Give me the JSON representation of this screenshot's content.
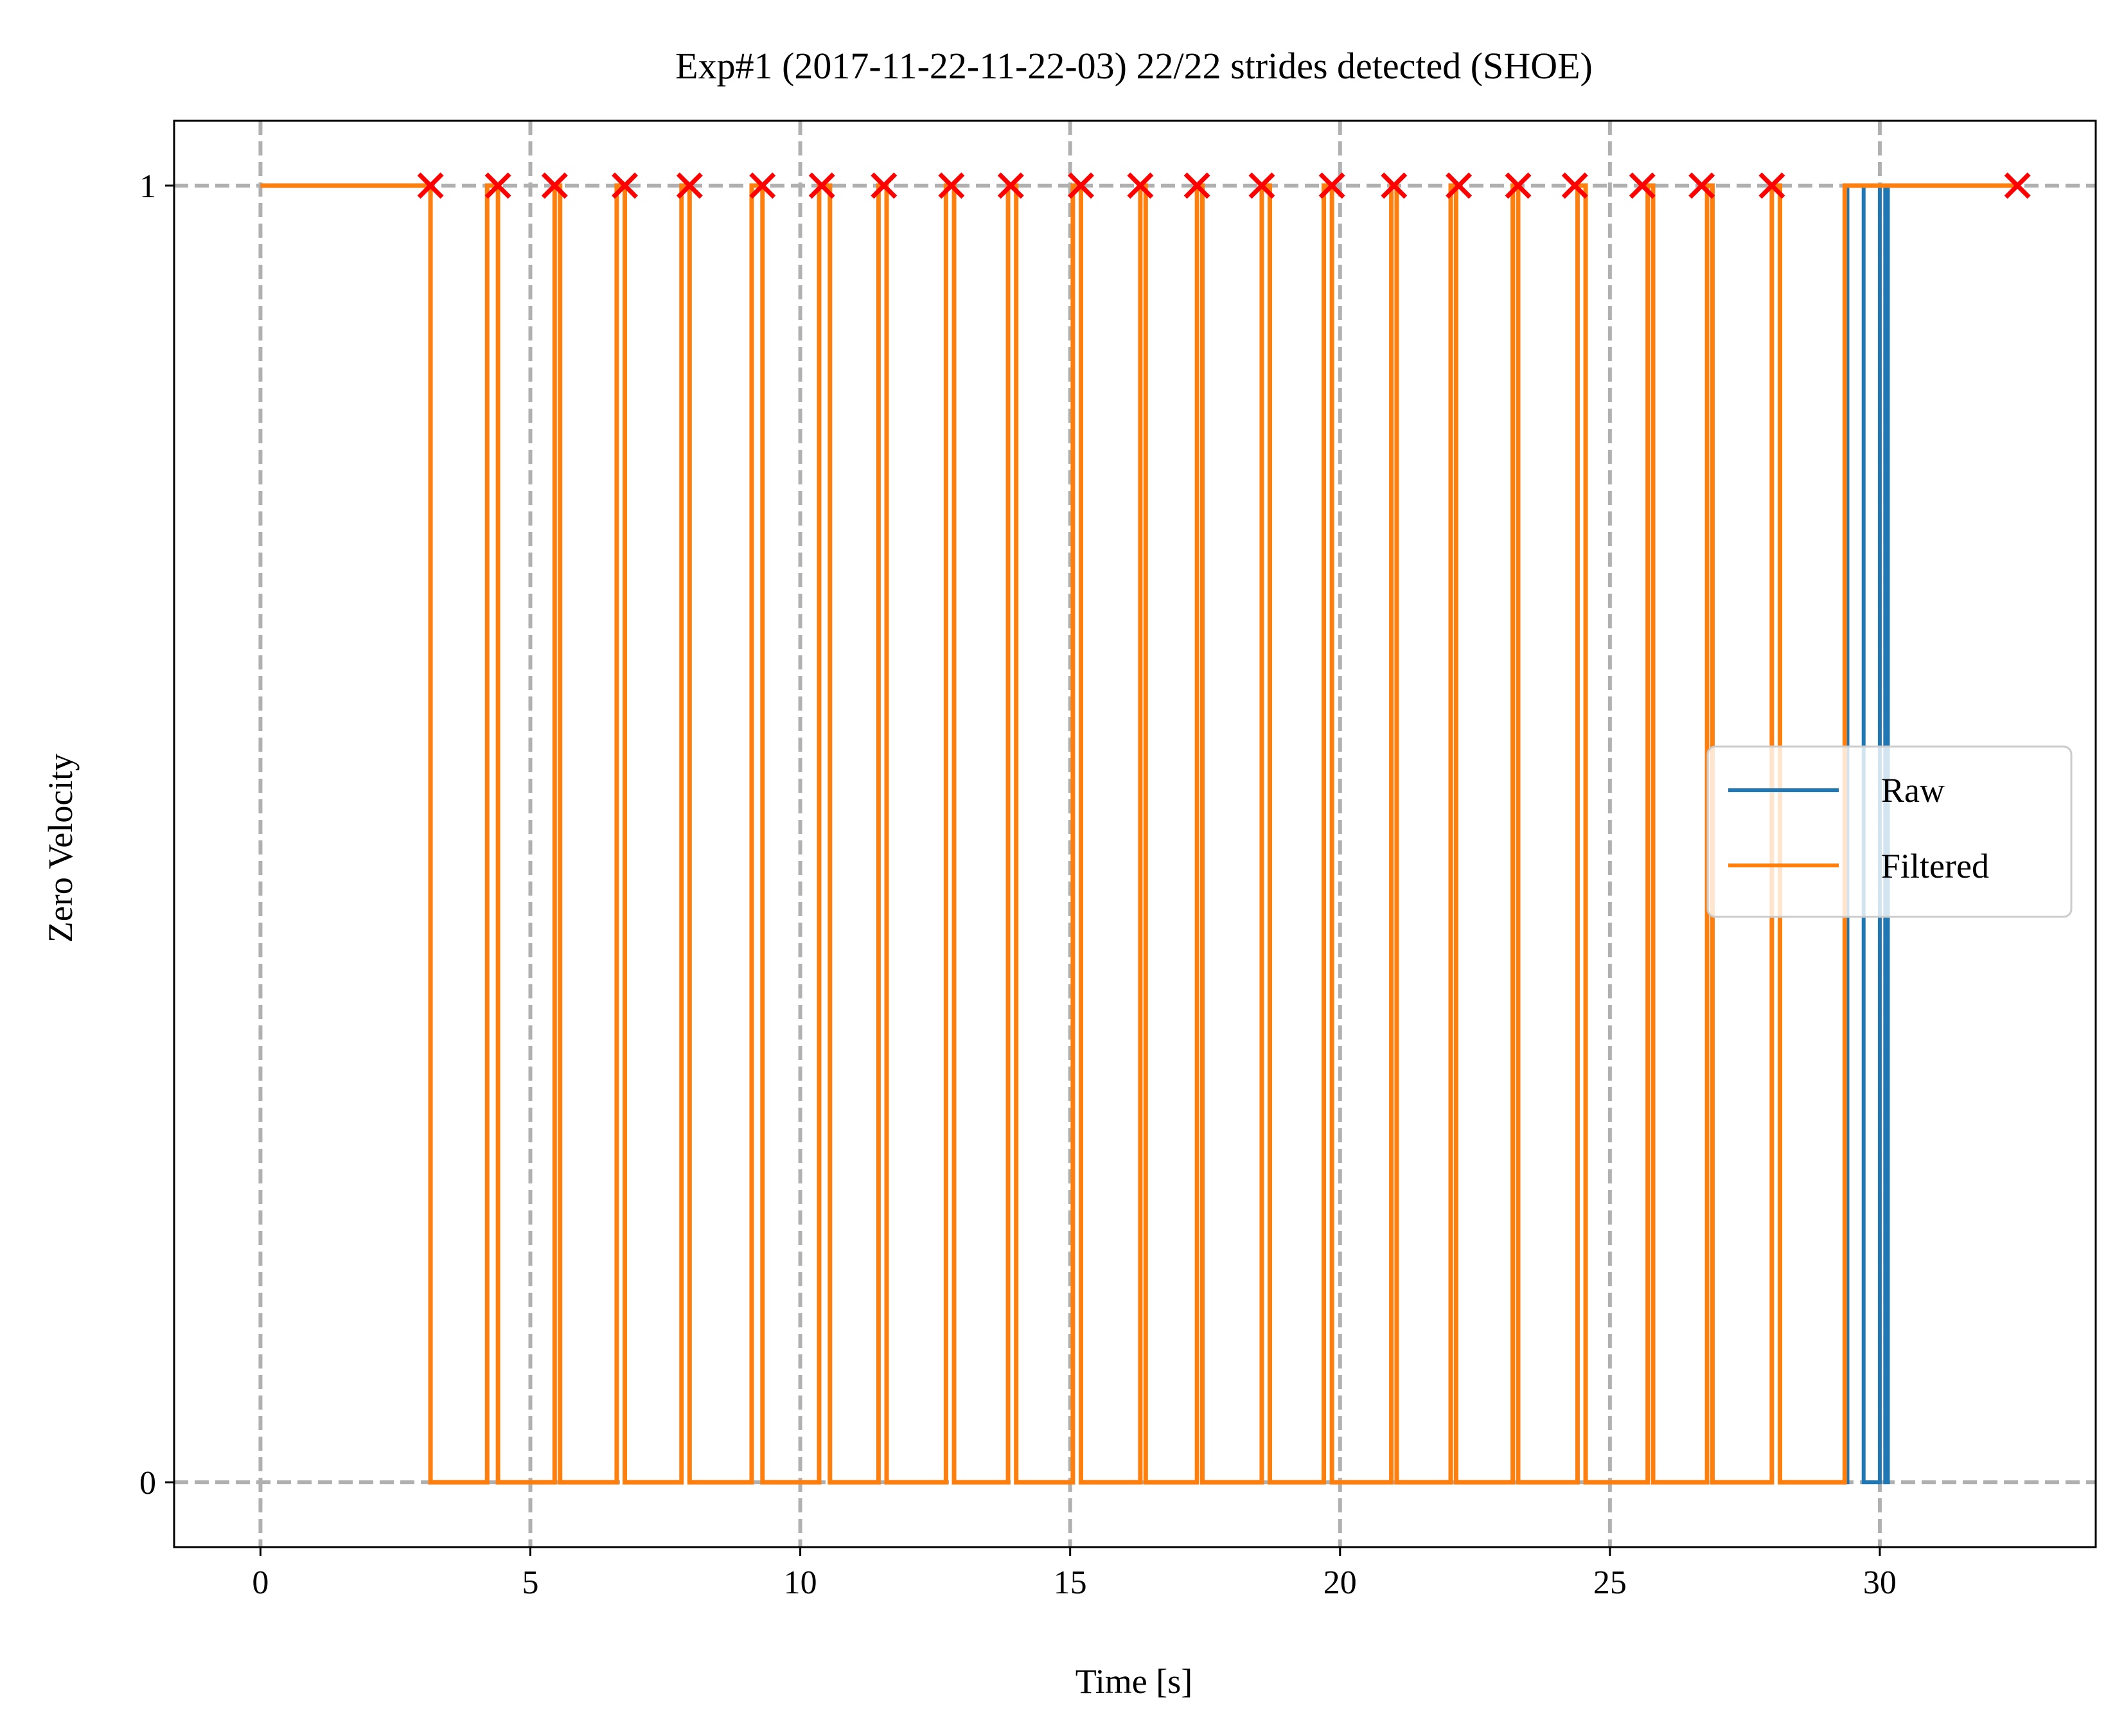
{
  "chart_data": {
    "type": "line",
    "title": "Exp#1 (2017-11-22-11-22-03) 22/22 strides detected (SHOE)",
    "xlabel": "Time [s]",
    "ylabel": "Zero Velocity",
    "xlim": [
      -1.6,
      34.0
    ],
    "ylim": [
      -0.05,
      1.05
    ],
    "xticks": [
      0,
      5,
      10,
      15,
      20,
      25,
      30
    ],
    "xtick_labels": [
      "0",
      "5",
      "10",
      "15",
      "20",
      "25",
      "30"
    ],
    "yticks": [
      0,
      1
    ],
    "ytick_labels": [
      "0",
      "1"
    ],
    "grid": true,
    "legend_position": "center-right",
    "colors": {
      "raw": "#1f77b4",
      "filtered": "#ff7f0e",
      "strides": "#ff0000",
      "grid": "#b0b0b0"
    },
    "series": [
      {
        "name": "Raw",
        "step_transitions": [
          [
            0,
            1
          ],
          [
            3.15,
            0
          ],
          [
            4.2,
            1
          ],
          [
            4.4,
            0
          ],
          [
            5.45,
            1
          ],
          [
            5.55,
            0
          ],
          [
            6.6,
            1
          ],
          [
            6.75,
            0
          ],
          [
            7.8,
            1
          ],
          [
            7.95,
            0
          ],
          [
            9.1,
            1
          ],
          [
            9.3,
            0
          ],
          [
            10.35,
            1
          ],
          [
            10.55,
            0
          ],
          [
            11.45,
            1
          ],
          [
            11.6,
            0
          ],
          [
            12.7,
            1
          ],
          [
            12.85,
            0
          ],
          [
            13.85,
            1
          ],
          [
            14.0,
            0
          ],
          [
            15.05,
            1
          ],
          [
            15.2,
            0
          ],
          [
            16.3,
            1
          ],
          [
            16.4,
            0
          ],
          [
            17.35,
            1
          ],
          [
            17.45,
            0
          ],
          [
            18.55,
            1
          ],
          [
            18.7,
            0
          ],
          [
            19.7,
            1
          ],
          [
            19.85,
            0
          ],
          [
            20.95,
            1
          ],
          [
            21.05,
            0
          ],
          [
            22.05,
            1
          ],
          [
            22.15,
            0
          ],
          [
            23.2,
            1
          ],
          [
            23.3,
            0
          ],
          [
            24.4,
            1
          ],
          [
            24.55,
            0
          ],
          [
            25.7,
            1
          ],
          [
            25.8,
            0
          ],
          [
            26.8,
            1
          ],
          [
            26.9,
            0
          ],
          [
            28.0,
            1
          ],
          [
            28.15,
            0
          ],
          [
            29.4,
            1
          ],
          [
            29.7,
            0
          ],
          [
            30.0,
            1
          ],
          [
            30.1,
            0
          ],
          [
            30.15,
            1
          ],
          [
            32.5,
            1
          ]
        ]
      },
      {
        "name": "Filtered",
        "step_transitions": [
          [
            0,
            1
          ],
          [
            3.15,
            0
          ],
          [
            4.2,
            1
          ],
          [
            4.4,
            0
          ],
          [
            5.45,
            1
          ],
          [
            5.55,
            0
          ],
          [
            6.6,
            1
          ],
          [
            6.75,
            0
          ],
          [
            7.8,
            1
          ],
          [
            7.95,
            0
          ],
          [
            9.1,
            1
          ],
          [
            9.3,
            0
          ],
          [
            10.35,
            1
          ],
          [
            10.55,
            0
          ],
          [
            11.45,
            1
          ],
          [
            11.6,
            0
          ],
          [
            12.7,
            1
          ],
          [
            12.85,
            0
          ],
          [
            13.85,
            1
          ],
          [
            14.0,
            0
          ],
          [
            15.05,
            1
          ],
          [
            15.2,
            0
          ],
          [
            16.3,
            1
          ],
          [
            16.4,
            0
          ],
          [
            17.35,
            1
          ],
          [
            17.45,
            0
          ],
          [
            18.55,
            1
          ],
          [
            18.7,
            0
          ],
          [
            19.7,
            1
          ],
          [
            19.85,
            0
          ],
          [
            20.95,
            1
          ],
          [
            21.05,
            0
          ],
          [
            22.05,
            1
          ],
          [
            22.15,
            0
          ],
          [
            23.2,
            1
          ],
          [
            23.3,
            0
          ],
          [
            24.4,
            1
          ],
          [
            24.55,
            0
          ],
          [
            25.7,
            1
          ],
          [
            25.8,
            0
          ],
          [
            26.8,
            1
          ],
          [
            26.9,
            0
          ],
          [
            28.0,
            1
          ],
          [
            28.15,
            0
          ],
          [
            29.35,
            1
          ],
          [
            32.5,
            1
          ]
        ]
      }
    ],
    "stride_markers": {
      "marker": "x",
      "y": 1,
      "x": [
        3.15,
        4.4,
        5.45,
        6.75,
        7.95,
        9.3,
        10.4,
        11.55,
        12.8,
        13.9,
        15.2,
        16.3,
        17.35,
        18.55,
        19.85,
        21.0,
        22.2,
        23.3,
        24.35,
        25.6,
        26.7,
        28.0,
        32.55
      ]
    }
  }
}
